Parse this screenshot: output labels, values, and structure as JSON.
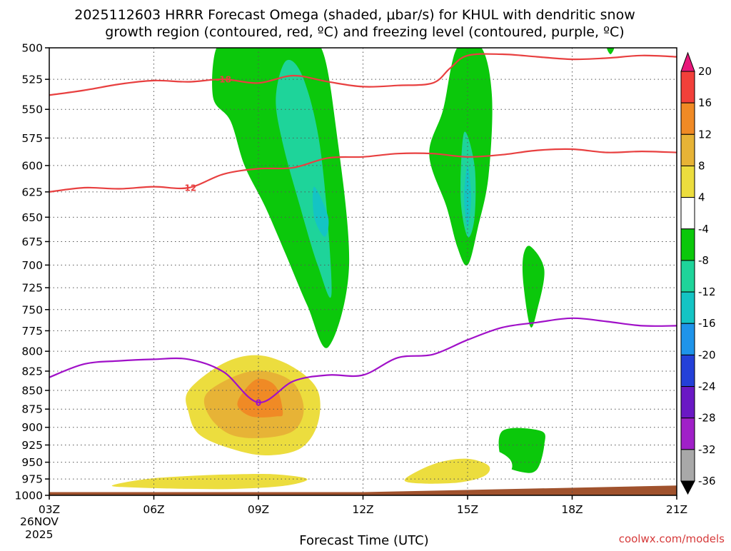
{
  "chart_data": {
    "type": "heatmap",
    "title_line1": "2025112603 HRRR Forecast Omega (shaded, μbar/s) for KHUL with dendritic snow",
    "title_line2": "growth region (contoured, red, ºC) and freezing level (contoured, purple, ºC)",
    "xlabel": "Forecast Time (UTC)",
    "credit": "coolwx.com/models",
    "x_ticks": [
      "03Z",
      "06Z",
      "09Z",
      "12Z",
      "15Z",
      "18Z",
      "21Z"
    ],
    "x_hours": [
      3,
      6,
      9,
      12,
      15,
      18,
      21
    ],
    "x_sublabel_date": "26NOV",
    "x_sublabel_year": "2025",
    "xlim": [
      3,
      21
    ],
    "y_ticks": [
      500,
      525,
      550,
      575,
      600,
      625,
      650,
      675,
      700,
      725,
      750,
      775,
      800,
      825,
      850,
      875,
      900,
      925,
      950,
      975,
      1000
    ],
    "ylim": [
      500,
      1000
    ],
    "y_scale": "log-pressure",
    "colorbar_levels": [
      20,
      16,
      12,
      8,
      4,
      -4,
      -8,
      -12,
      -16,
      -20,
      -24,
      -28,
      -32,
      -36
    ],
    "colorbar_colors": [
      "#e8177a",
      "#f2403a",
      "#f08a25",
      "#e7b336",
      "#ecdd3e",
      "#ffffff",
      "#0bc80b",
      "#1ed49a",
      "#14c4c4",
      "#1e94ea",
      "#2440d8",
      "#6a18c4",
      "#a020c8",
      "#a8a8a8",
      "#000000"
    ],
    "series": [
      {
        "name": "-18 ºC isotherm",
        "color": "#e84040",
        "label": "-18",
        "label_hour": 8.0,
        "hours": [
          3,
          4,
          5,
          6,
          7,
          8,
          9,
          10,
          11,
          12,
          13,
          14,
          14.5,
          15,
          16,
          17,
          18,
          19,
          20,
          21
        ],
        "pressure": [
          538,
          534,
          529,
          526,
          527,
          525,
          528,
          522,
          527,
          531,
          530,
          528,
          516,
          506,
          505,
          507,
          509,
          508,
          506,
          507
        ]
      },
      {
        "name": "-12 ºC isotherm",
        "color": "#e84040",
        "label": "-12",
        "label_hour": 7.0,
        "hours": [
          3,
          4,
          5,
          6,
          7,
          8,
          9,
          10,
          11,
          12,
          13,
          14,
          15,
          16,
          17,
          18,
          19,
          20,
          21
        ],
        "pressure": [
          625,
          621,
          622,
          620,
          621,
          608,
          603,
          602,
          593,
          592,
          589,
          589,
          592,
          590,
          586,
          585,
          588,
          587,
          588
        ]
      },
      {
        "name": "0 ºC freezing level",
        "color": "#a010c8",
        "label": "0",
        "label_hour": 9.0,
        "hours": [
          3,
          4,
          5,
          6,
          7,
          8,
          9,
          10,
          11,
          12,
          13,
          14,
          15,
          16,
          17,
          18,
          19,
          20,
          21
        ],
        "pressure": [
          833,
          816,
          812,
          810,
          810,
          826,
          866,
          838,
          830,
          830,
          808,
          804,
          786,
          771,
          765,
          760,
          764,
          769,
          769
        ]
      }
    ],
    "regions": [
      {
        "band": "-8",
        "hours": [
          7.8,
          8.4,
          8.8,
          9.1,
          9.6,
          10.2,
          10.8,
          11.2,
          11.6,
          11.0,
          10.4,
          9.8,
          9.2,
          8.6,
          8.2,
          7.7
        ],
        "pressure": [
          500,
          500,
          500,
          500,
          500,
          500,
          500,
          560,
          700,
          795,
          745,
          690,
          640,
          600,
          560,
          540
        ]
      },
      {
        "band": "-12",
        "hours": [
          9.8,
          10.3,
          10.8,
          11.1,
          10.7,
          10.2,
          9.7,
          9.5
        ],
        "pressure": [
          510,
          525,
          590,
          730,
          700,
          640,
          580,
          540
        ]
      },
      {
        "band": "-16",
        "hours": [
          10.6,
          11.0,
          10.9,
          10.6
        ],
        "pressure": [
          620,
          650,
          670,
          650
        ]
      },
      {
        "band": "-8",
        "hours": [
          14.7,
          15.4,
          15.7,
          15.6,
          15.3,
          15.0,
          14.7,
          14.4,
          13.9,
          14.3
        ],
        "pressure": [
          500,
          500,
          540,
          610,
          660,
          700,
          680,
          640,
          590,
          550
        ]
      },
      {
        "band": "-12",
        "hours": [
          14.9,
          15.2,
          15.2,
          15.0,
          14.8
        ],
        "pressure": [
          570,
          600,
          650,
          670,
          630
        ]
      },
      {
        "band": "-16",
        "hours": [
          15.0,
          15.1,
          15.0,
          14.9
        ],
        "pressure": [
          600,
          630,
          660,
          630
        ]
      },
      {
        "band": "-8",
        "hours": [
          16.6,
          16.8,
          17.2,
          17.0,
          16.8,
          16.6
        ],
        "pressure": [
          690,
          680,
          705,
          750,
          770,
          720
        ]
      },
      {
        "band": "-8",
        "hours": [
          16.0,
          17.1,
          17.2,
          17.0,
          16.6,
          16.0
        ],
        "pressure": [
          905,
          905,
          925,
          960,
          965,
          950
        ]
      },
      {
        "band": "-8",
        "hours": [
          19.0,
          19.2,
          19.1
        ],
        "pressure": [
          500,
          500,
          505
        ]
      },
      {
        "band": "4",
        "hours": [
          4.0,
          4.1,
          4.2,
          4.0,
          3.9
        ],
        "pressure": [
          500,
          520,
          620,
          670,
          620
        ]
      },
      {
        "band": "4",
        "hours": [
          6.7,
          8.1,
          9.0,
          10.0,
          11.0,
          11.3,
          11.2,
          10.6,
          9.8,
          9.0,
          7.8,
          6.8,
          6.5,
          6.5
        ],
        "pressure": [
          825,
          780,
          770,
          780,
          800,
          840,
          880,
          960,
          985,
          990,
          980,
          950,
          900,
          850
        ]
      },
      {
        "band": "8",
        "hours": [
          7.0,
          8.0,
          9.0,
          10.0,
          10.7,
          10.7,
          10.2,
          9.2,
          8.2,
          7.3,
          7.0
        ],
        "pressure": [
          850,
          815,
          805,
          820,
          850,
          895,
          930,
          940,
          930,
          910,
          880
        ]
      },
      {
        "band": "12",
        "hours": [
          7.5,
          8.4,
          9.2,
          10.0,
          10.3,
          10.0,
          9.1,
          8.2,
          7.6
        ],
        "pressure": [
          855,
          830,
          825,
          840,
          875,
          905,
          915,
          910,
          885
        ]
      },
      {
        "band": "16",
        "hours": [
          8.6,
          9.0,
          9.5,
          9.7,
          9.5,
          8.8,
          8.4
        ],
        "pressure": [
          850,
          835,
          845,
          880,
          885,
          885,
          870
        ]
      },
      {
        "band": "4",
        "hours": [
          3.8,
          5.0,
          6.5,
          7.8,
          8.8,
          10.0,
          10.8,
          11.3,
          12.0,
          13.4,
          14.6,
          15.6,
          16.2,
          16.2,
          15.5,
          14.2,
          13.2,
          12.3,
          11.0,
          9.0,
          6.0,
          3.5
        ],
        "pressure": [
          975,
          950,
          945,
          955,
          965,
          970,
          968,
          972,
          965,
          945,
          930,
          930,
          945,
          965,
          980,
          985,
          987,
          990,
          991,
          993,
          996,
          996
        ]
      },
      {
        "band": "8",
        "hours": [
          4.8,
          5.8,
          7.2,
          8.3,
          9.5,
          10.4,
          9.8,
          8.4,
          7.0,
          5.5
        ],
        "pressure": [
          985,
          975,
          970,
          968,
          968,
          975,
          985,
          990,
          990,
          988
        ]
      },
      {
        "band": "8",
        "hours": [
          13.5,
          14.2,
          15.0,
          15.6,
          15.5,
          14.8,
          13.8,
          13.2
        ],
        "pressure": [
          965,
          950,
          945,
          955,
          970,
          980,
          982,
          978
        ]
      },
      {
        "band": "4",
        "hours": [
          19.9,
          20.4,
          21.0,
          21.0,
          20.5,
          20.3,
          20.4,
          20.6,
          20.6,
          19.9,
          19.4,
          19.5,
          19.9
        ],
        "pressure": [
          662,
          710,
          720,
          790,
          800,
          780,
          760,
          745,
          735,
          740,
          722,
          680,
          662
        ]
      },
      {
        "band": "4",
        "hours": [
          20.9,
          21.0,
          21.0,
          20.7
        ],
        "pressure": [
          500,
          500,
          550,
          600
        ]
      },
      {
        "band": "4",
        "hours": [
          19.0,
          20.0,
          21.0,
          21.0,
          20.0,
          19.3,
          18.9
        ],
        "pressure": [
          930,
          922,
          935,
          960,
          965,
          958,
          945
        ]
      },
      {
        "band": "4",
        "hours": [
          11.95,
          12.1,
          12.0,
          11.9
        ],
        "pressure": [
          790,
          820,
          850,
          820
        ]
      }
    ],
    "ground": {
      "color": "#a0522d",
      "hours": [
        3,
        12,
        21,
        21,
        3
      ],
      "pressure": [
        995,
        995,
        985,
        1000,
        1000
      ]
    }
  }
}
